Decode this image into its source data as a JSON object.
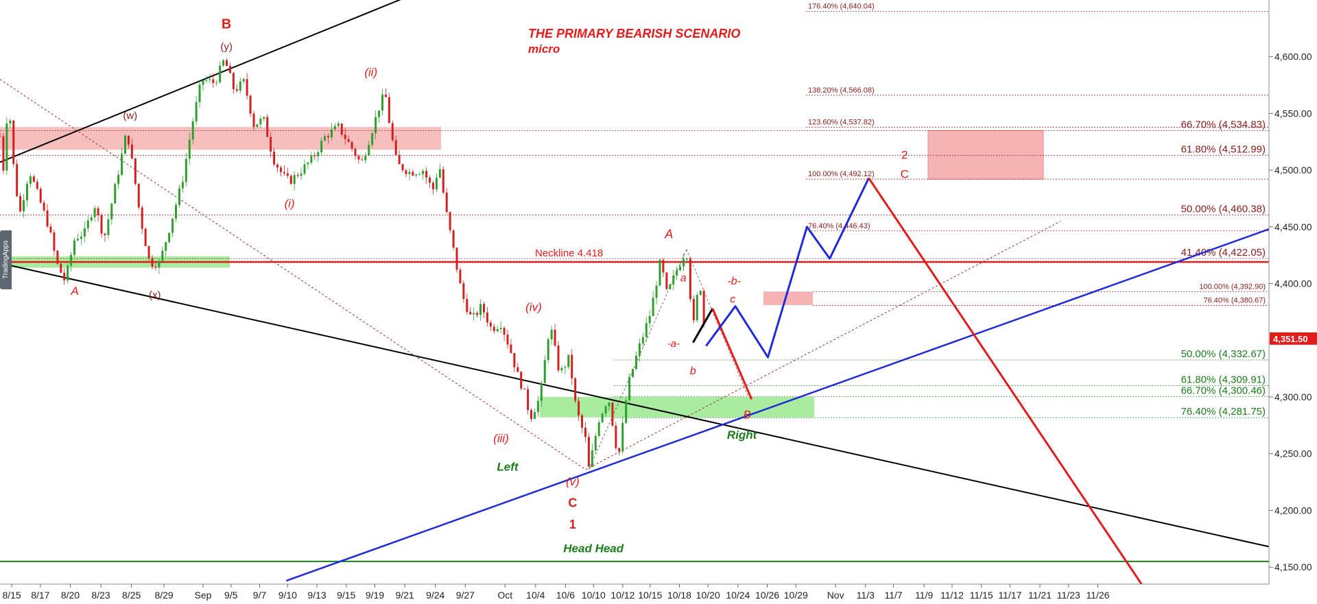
{
  "sidebar_label": "TradingApps",
  "colors": {
    "red": "#e31b1b",
    "darkred": "#8b1a1a",
    "green": "#1a7d1a",
    "blue": "#1f2ad9",
    "black": "#000000",
    "upcandle": "#2e9e2e",
    "downcandle": "#d02020"
  },
  "chart_data": {
    "type": "line",
    "title": "THE PRIMARY BEARISH SCENARIO",
    "subtitle": "micro",
    "ylim": [
      4135,
      4650
    ],
    "y_ticks": [
      4150,
      4200,
      4250,
      4300,
      4350,
      4400,
      4450,
      4500,
      4550,
      4600
    ],
    "y_tick_labels": [
      "4,150.00",
      "4,200.00",
      "4,250.00",
      "4,300.00",
      "4,350.00",
      "4,400.00",
      "4,450.00",
      "4,500.00",
      "4,550.00",
      "4,600.00"
    ],
    "x_tick_labels": [
      "8/15",
      "8/17",
      "8/20",
      "8/23",
      "8/25",
      "8/29",
      "Sep",
      "9/5",
      "9/7",
      "9/10",
      "9/13",
      "9/15",
      "9/19",
      "9/21",
      "9/24",
      "9/27",
      "Oct",
      "10/4",
      "10/6",
      "10/10",
      "10/12",
      "10/15",
      "10/18",
      "10/20",
      "10/24",
      "10/26",
      "10/29",
      "Nov",
      "11/3",
      "11/7",
      "11/9",
      "11/12",
      "11/15",
      "11/17",
      "11/21",
      "11/23",
      "11/26"
    ],
    "last_price": 4351.5,
    "last_price_label": "4,351.50",
    "price_path": [
      [
        0,
        4530
      ],
      [
        0.05,
        4500
      ],
      [
        0.13,
        4566
      ],
      [
        0.2,
        4508
      ],
      [
        0.3,
        4460
      ],
      [
        0.45,
        4500
      ],
      [
        0.6,
        4475
      ],
      [
        0.75,
        4450
      ],
      [
        0.87,
        4418
      ],
      [
        1.0,
        4402
      ],
      [
        1.15,
        4440
      ],
      [
        1.3,
        4445
      ],
      [
        1.45,
        4470
      ],
      [
        1.6,
        4440
      ],
      [
        1.8,
        4493
      ],
      [
        1.95,
        4535
      ],
      [
        2.05,
        4500
      ],
      [
        2.15,
        4460
      ],
      [
        2.3,
        4418
      ],
      [
        2.45,
        4418
      ],
      [
        2.6,
        4448
      ],
      [
        2.8,
        4490
      ],
      [
        2.95,
        4540
      ],
      [
        3.1,
        4580
      ],
      [
        3.3,
        4577
      ],
      [
        3.45,
        4598
      ],
      [
        3.6,
        4570
      ],
      [
        3.75,
        4578
      ],
      [
        3.9,
        4540
      ],
      [
        4.05,
        4545
      ],
      [
        4.2,
        4510
      ],
      [
        4.35,
        4495
      ],
      [
        4.45,
        4490
      ],
      [
        4.6,
        4498
      ],
      [
        4.8,
        4510
      ],
      [
        5.0,
        4530
      ],
      [
        5.2,
        4538
      ],
      [
        5.4,
        4520
      ],
      [
        5.55,
        4505
      ],
      [
        5.7,
        4532
      ],
      [
        5.85,
        4560
      ],
      [
        5.92,
        4567
      ],
      [
        6.0,
        4535
      ],
      [
        6.1,
        4505
      ],
      [
        6.3,
        4498
      ],
      [
        6.5,
        4500
      ],
      [
        6.65,
        4482
      ],
      [
        6.75,
        4505
      ],
      [
        6.85,
        4465
      ],
      [
        7.0,
        4420
      ],
      [
        7.1,
        4390
      ],
      [
        7.25,
        4368
      ],
      [
        7.4,
        4380
      ],
      [
        7.55,
        4360
      ],
      [
        7.7,
        4365
      ],
      [
        7.85,
        4340
      ],
      [
        7.95,
        4320
      ],
      [
        8.05,
        4305
      ],
      [
        8.15,
        4282
      ],
      [
        8.3,
        4300
      ],
      [
        8.45,
        4365
      ],
      [
        8.6,
        4320
      ],
      [
        8.75,
        4335
      ],
      [
        8.85,
        4290
      ],
      [
        9.0,
        4262
      ],
      [
        9.05,
        4236
      ],
      [
        9.2,
        4280
      ],
      [
        9.35,
        4300
      ],
      [
        9.5,
        4245
      ],
      [
        9.65,
        4310
      ],
      [
        9.8,
        4340
      ],
      [
        10.0,
        4375
      ],
      [
        10.15,
        4420
      ],
      [
        10.25,
        4390
      ],
      [
        10.4,
        4412
      ],
      [
        10.55,
        4430
      ],
      [
        10.65,
        4360
      ],
      [
        10.75,
        4405
      ],
      [
        10.85,
        4345
      ]
    ],
    "x_domain": [
      0,
      19.5
    ],
    "x_tick_positions": [
      0.18,
      0.62,
      1.08,
      1.55,
      2.02,
      2.52,
      3.12,
      3.55,
      3.99,
      4.42,
      4.87,
      5.32,
      5.76,
      6.22,
      6.69,
      7.15,
      7.76,
      8.23,
      8.69,
      9.12,
      9.57,
      9.99,
      10.44,
      10.88,
      11.34,
      11.79,
      12.23,
      12.84,
      13.3,
      13.73,
      14.2,
      14.63,
      15.08,
      15.52,
      15.98,
      16.42,
      16.87
    ],
    "fib_levels_top": [
      {
        "label": "176.40% (4,640.04)",
        "value": 4640.04
      },
      {
        "label": "138.20% (4,566.08)",
        "value": 4566.08
      },
      {
        "label": "123.60% (4,537.82)",
        "value": 4537.82
      },
      {
        "label": "100.00% (4,492.12)",
        "value": 4492.12
      },
      {
        "label": "76.40% (4,446.43)",
        "value": 4446.43
      }
    ],
    "fib_levels_right": [
      {
        "label": "66.70% (4,534.83)",
        "value": 4534.83
      },
      {
        "label": "61.80% (4,512.99)",
        "value": 4512.99
      },
      {
        "label": "50.00% (4,460.38)",
        "value": 4460.38
      },
      {
        "label": "41.40% (4,422.05)",
        "value": 4422.05
      }
    ],
    "fib_levels_mid": [
      {
        "label": "100.00% (4,392.90)",
        "value": 4392.9
      },
      {
        "label": "76.40% (4,380.67)",
        "value": 4380.67
      }
    ],
    "fib_levels_green": [
      {
        "label": "50.00% (4,332.67)",
        "value": 4332.67
      },
      {
        "label": "61.80% (4,309.91)",
        "value": 4309.91
      },
      {
        "label": "66.70% (4,300.46)",
        "value": 4300.46
      },
      {
        "label": "76.40% (4,281.75)",
        "value": 4281.75
      }
    ],
    "neckline": {
      "label": "Neckline 4.418",
      "value": 4419
    },
    "horizontal_green_line": 4155,
    "projection_blue": [
      [
        10.85,
        4345
      ],
      [
        11.3,
        4380
      ],
      [
        11.8,
        4335
      ],
      [
        12.4,
        4450
      ],
      [
        12.75,
        4422
      ],
      [
        13.35,
        4493
      ]
    ],
    "projection_red_1": [
      [
        10.95,
        4378
      ],
      [
        11.55,
        4298
      ]
    ],
    "projection_red_2": [
      [
        13.35,
        4493
      ],
      [
        17.6,
        4130
      ]
    ],
    "projection_black_seg": [
      [
        10.65,
        4348
      ],
      [
        10.95,
        4378
      ]
    ],
    "wave_labels_red": [
      {
        "text": "B",
        "x": 3.48,
        "y": 4625,
        "size": 20,
        "bold": true,
        "italic": false
      },
      {
        "text": "(ii)",
        "x": 5.7,
        "y": 4583,
        "size": 17,
        "bold": false,
        "italic": true
      },
      {
        "text": "(i)",
        "x": 4.45,
        "y": 4467,
        "size": 17,
        "bold": false,
        "italic": true
      },
      {
        "text": "A",
        "x": 1.15,
        "y": 4390,
        "size": 17,
        "bold": false,
        "italic": true
      },
      {
        "text": "(iv)",
        "x": 8.2,
        "y": 4376,
        "size": 17,
        "bold": false,
        "italic": true
      },
      {
        "text": "(iii)",
        "x": 7.7,
        "y": 4260,
        "size": 17,
        "bold": false,
        "italic": true
      },
      {
        "text": "(v)",
        "x": 8.8,
        "y": 4222,
        "size": 17,
        "bold": false,
        "italic": true
      },
      {
        "text": "C",
        "x": 8.8,
        "y": 4203,
        "size": 18,
        "bold": true,
        "italic": false
      },
      {
        "text": "1",
        "x": 8.8,
        "y": 4184,
        "size": 18,
        "bold": true,
        "italic": false
      },
      {
        "text": "A",
        "x": 10.28,
        "y": 4440,
        "size": 18,
        "bold": false,
        "italic": true
      },
      {
        "text": "a",
        "x": 10.5,
        "y": 4402,
        "size": 16,
        "bold": false,
        "italic": true
      },
      {
        "text": "-a-",
        "x": 10.35,
        "y": 4344,
        "size": 15,
        "bold": false,
        "italic": true
      },
      {
        "text": "b",
        "x": 10.65,
        "y": 4320,
        "size": 16,
        "bold": false,
        "italic": true
      },
      {
        "text": "-b-",
        "x": 11.28,
        "y": 4399,
        "size": 16,
        "bold": false,
        "italic": true
      },
      {
        "text": "c",
        "x": 11.26,
        "y": 4383,
        "size": 16,
        "bold": false,
        "italic": true
      },
      {
        "text": "B",
        "x": 11.48,
        "y": 4281,
        "size": 17,
        "bold": false,
        "italic": true
      },
      {
        "text": "2",
        "x": 13.9,
        "y": 4510,
        "size": 17,
        "bold": false,
        "italic": false
      },
      {
        "text": "C",
        "x": 13.9,
        "y": 4493,
        "size": 17,
        "bold": false,
        "italic": false
      }
    ],
    "wave_labels_dark": [
      {
        "text": "(y)",
        "x": 3.48,
        "y": 4606
      },
      {
        "text": "(w)",
        "x": 2.0,
        "y": 4545
      },
      {
        "text": "(x)",
        "x": 2.38,
        "y": 4387
      }
    ],
    "wave_labels_green": [
      {
        "text": "Left",
        "x": 7.8,
        "y": 4235
      },
      {
        "text": "Head Head",
        "x": 9.12,
        "y": 4163
      },
      {
        "text": "Right",
        "x": 11.4,
        "y": 4263
      }
    ]
  }
}
